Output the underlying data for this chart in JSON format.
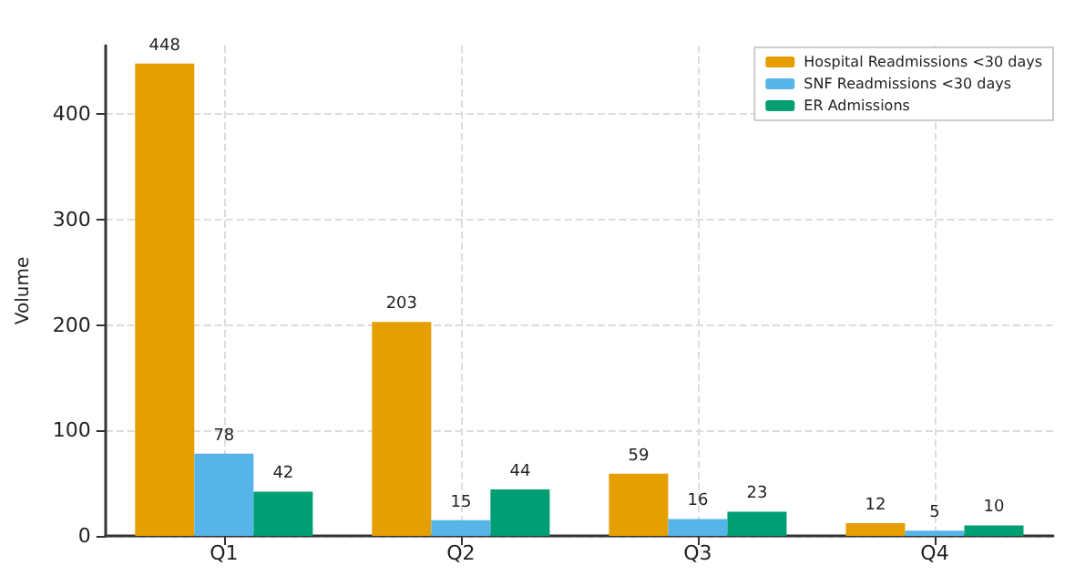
{
  "chart_data": {
    "type": "bar",
    "ylabel": "Volume",
    "categories": [
      "Q1",
      "Q2",
      "Q3",
      "Q4"
    ],
    "series": [
      {
        "name": "Hospital Readmissions <30 days",
        "color": "#e69f00",
        "values": [
          448,
          203,
          59,
          12
        ]
      },
      {
        "name": "SNF Readmissions <30 days",
        "color": "#56b4e9",
        "values": [
          78,
          15,
          16,
          5
        ]
      },
      {
        "name": "ER Admissions",
        "color": "#009e73",
        "values": [
          42,
          44,
          23,
          10
        ]
      }
    ],
    "ylim": [
      0,
      465
    ],
    "yticks": [
      0,
      100,
      200,
      300,
      400
    ],
    "grid": true,
    "legend": "top right",
    "data_labels": true
  }
}
